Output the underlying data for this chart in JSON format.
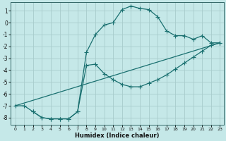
{
  "xlabel": "Humidex (Indice chaleur)",
  "background_color": "#c5e8e8",
  "grid_color": "#a8cccc",
  "line_color": "#1a7070",
  "xlim_min": -0.5,
  "xlim_max": 23.4,
  "ylim_min": -8.6,
  "ylim_max": 1.7,
  "xticks": [
    0,
    1,
    2,
    3,
    4,
    5,
    6,
    7,
    8,
    9,
    10,
    11,
    12,
    13,
    14,
    15,
    16,
    17,
    18,
    19,
    20,
    21,
    22,
    23
  ],
  "yticks": [
    1,
    0,
    -1,
    -2,
    -3,
    -4,
    -5,
    -6,
    -7,
    -8
  ],
  "series1_x": [
    0,
    1,
    2,
    3,
    4,
    5,
    6,
    7,
    8,
    9,
    10,
    11,
    12,
    13,
    14,
    15,
    16,
    17,
    18,
    19,
    20,
    21,
    22,
    23
  ],
  "series1_y": [
    -7,
    -7,
    -7.5,
    -8,
    -8.1,
    -8.1,
    -8.1,
    -7.5,
    -2.5,
    -1.0,
    -0.2,
    0.0,
    1.1,
    1.4,
    1.2,
    1.1,
    0.5,
    -0.7,
    -1.1,
    -1.1,
    -1.4,
    -1.1,
    -1.7,
    -1.7
  ],
  "series2_x": [
    2,
    3,
    4,
    5,
    6,
    7,
    8,
    9,
    10,
    11,
    12,
    13,
    14,
    15,
    16,
    17,
    18,
    19,
    20,
    21,
    22,
    23
  ],
  "series2_y": [
    -7.5,
    -8.0,
    -8.1,
    -8.1,
    -8.1,
    -7.5,
    -3.6,
    -3.5,
    -4.3,
    -4.8,
    -5.2,
    -5.4,
    -5.4,
    -5.1,
    -4.8,
    -4.4,
    -3.9,
    -3.4,
    -2.9,
    -2.4,
    -1.9,
    -1.7
  ],
  "series3_x": [
    0,
    23
  ],
  "series3_y": [
    -7,
    -1.7
  ],
  "marker_size": 2.2,
  "line_width": 0.9
}
